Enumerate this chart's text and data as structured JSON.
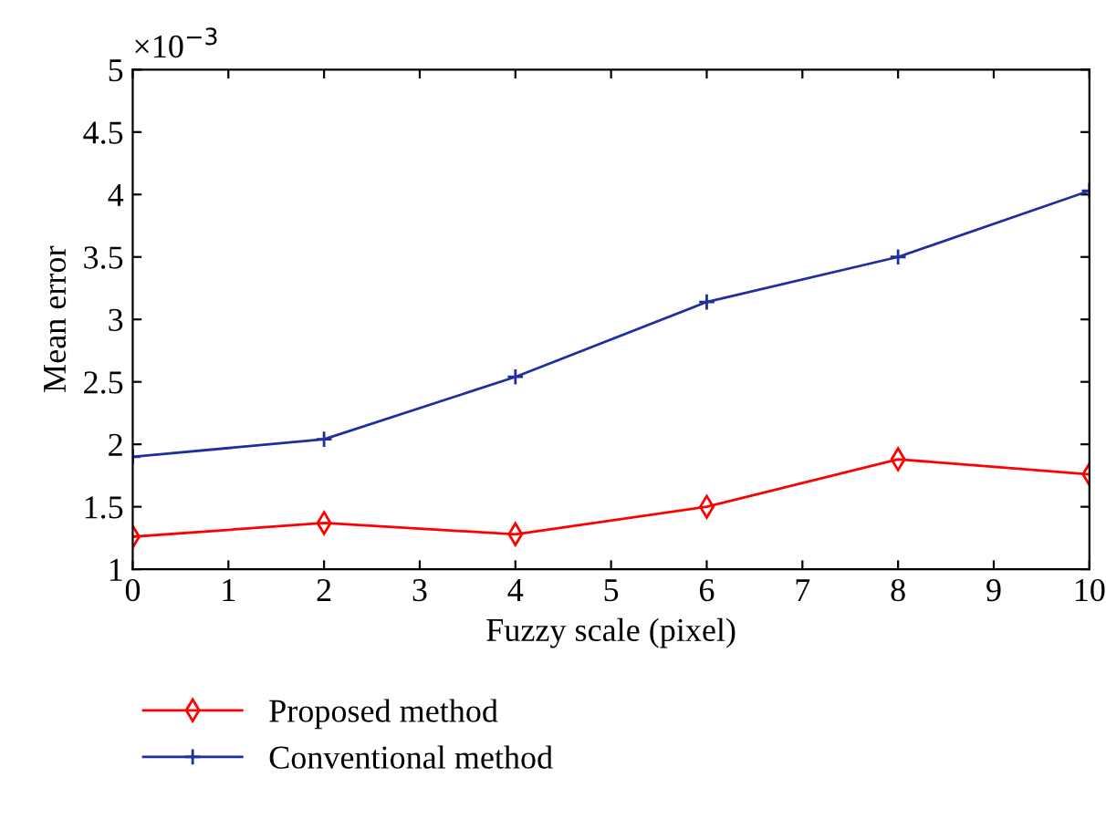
{
  "chart_data": {
    "type": "line",
    "xlabel": "Fuzzy scale (pixel)",
    "ylabel": "Mean error",
    "annotations": [
      "×10$^{−3}$"
    ],
    "x": [
      0,
      2,
      4,
      6,
      8,
      10
    ],
    "series": [
      {
        "name": "Proposed method",
        "color": "#ff0000",
        "marker": "diamond",
        "values": [
          1.26,
          1.37,
          1.28,
          1.5,
          1.88,
          1.76
        ]
      },
      {
        "name": "Conventional method",
        "color": "#1f2f9f",
        "marker": "plus",
        "values": [
          1.9,
          2.04,
          2.54,
          3.14,
          3.5,
          4.03
        ]
      }
    ],
    "xlim": [
      0,
      10
    ],
    "xticks": [
      0,
      1,
      2,
      3,
      4,
      5,
      6,
      7,
      8,
      9,
      10
    ],
    "ylim": [
      1,
      5
    ],
    "yticks": [
      1,
      1.5,
      2,
      2.5,
      3,
      3.5,
      4,
      4.5,
      5
    ],
    "grid": false,
    "legend": "bottom",
    "line_style": "solid"
  }
}
